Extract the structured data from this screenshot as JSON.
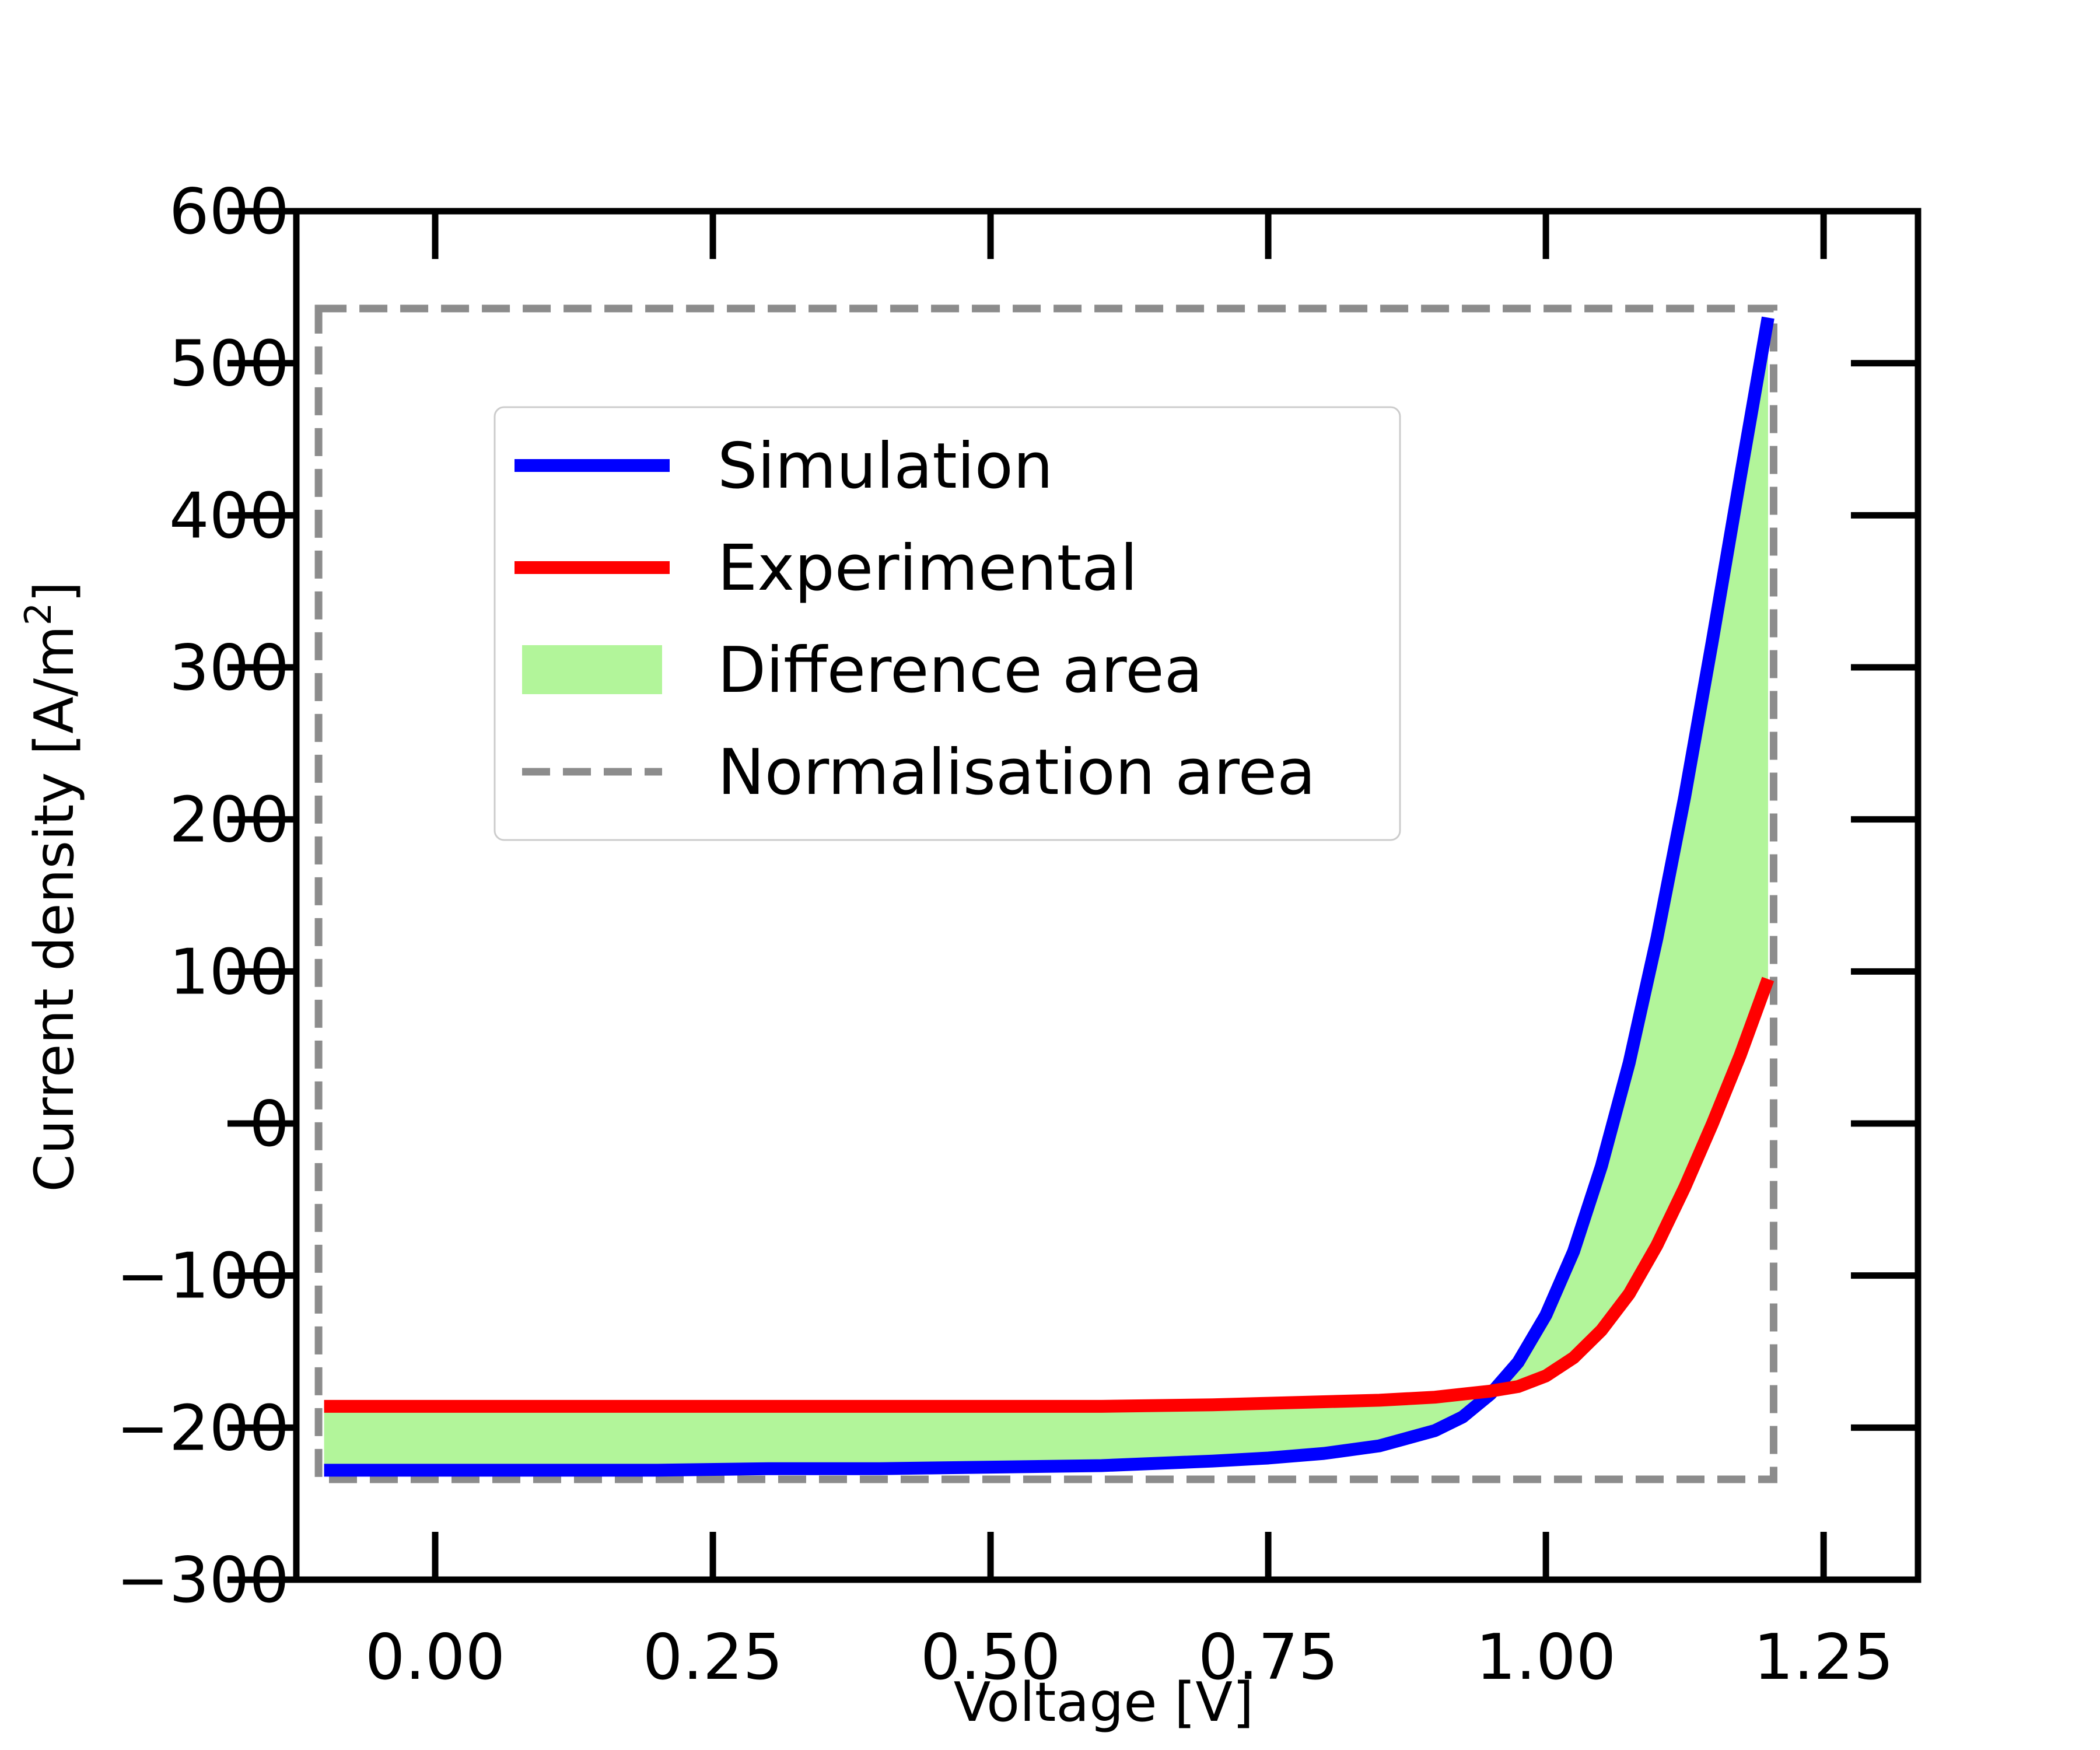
{
  "chart_data": {
    "type": "line",
    "xlabel": "Voltage [V]",
    "ylabel_main": "Current density [A/m",
    "ylabel_sup": "2",
    "ylabel_tail": "]",
    "xlim": [
      -0.125,
      1.335
    ],
    "ylim": [
      -300,
      600
    ],
    "xticks": [
      0.0,
      0.25,
      0.5,
      0.75,
      1.0,
      1.25
    ],
    "xtick_labels": [
      "0.00",
      "0.25",
      "0.50",
      "0.75",
      "1.00",
      "1.25"
    ],
    "yticks": [
      -300,
      -200,
      -100,
      0,
      100,
      200,
      300,
      400,
      500,
      600
    ],
    "ytick_labels": [
      "−300",
      "−200",
      "−100",
      "0",
      "100",
      "200",
      "300",
      "400",
      "500",
      "600"
    ],
    "grid": false,
    "legend_position": "upper-left",
    "colors": {
      "simulation": "#0000ff",
      "experimental": "#ff0000",
      "difference": "#b2f59a",
      "normalisation": "#8c8c8c"
    },
    "series": [
      {
        "name": "Simulation",
        "x": [
          -0.1,
          0.0,
          0.1,
          0.2,
          0.3,
          0.4,
          0.5,
          0.6,
          0.7,
          0.75,
          0.8,
          0.85,
          0.9,
          0.925,
          0.95,
          0.975,
          1.0,
          1.025,
          1.05,
          1.075,
          1.1,
          1.125,
          1.15,
          1.175,
          1.2
        ],
        "y": [
          -228,
          -228,
          -228,
          -228,
          -227,
          -227,
          -226,
          -225,
          -222,
          -220,
          -217,
          -212,
          -202,
          -193,
          -178,
          -157,
          -126,
          -84,
          -28,
          40,
          122,
          215,
          318,
          425,
          530
        ]
      },
      {
        "name": "Experimental",
        "x": [
          -0.1,
          0.0,
          0.1,
          0.2,
          0.3,
          0.4,
          0.5,
          0.6,
          0.7,
          0.75,
          0.8,
          0.85,
          0.9,
          0.925,
          0.95,
          0.975,
          1.0,
          1.025,
          1.05,
          1.075,
          1.1,
          1.125,
          1.15,
          1.175,
          1.2
        ],
        "y": [
          -186,
          -186,
          -186,
          -186,
          -186,
          -186,
          -186,
          -186,
          -185,
          -184,
          -183,
          -182,
          -180,
          -178,
          -176,
          -173,
          -166,
          -154,
          -136,
          -112,
          -80,
          -42,
          0,
          45,
          95
        ]
      }
    ],
    "fill_between": {
      "name": "Difference area",
      "between": [
        "Simulation",
        "Experimental"
      ]
    },
    "normalisation_area": {
      "name": "Normalisation area",
      "x": [
        -0.105,
        1.205
      ],
      "y": [
        -234,
        536
      ]
    },
    "legend": [
      {
        "label": "Simulation",
        "kind": "line",
        "color_key": "simulation"
      },
      {
        "label": "Experimental",
        "kind": "line",
        "color_key": "experimental"
      },
      {
        "label": "Difference area",
        "kind": "patch",
        "color_key": "difference"
      },
      {
        "label": "Normalisation area",
        "kind": "dashed",
        "color_key": "normalisation"
      }
    ]
  }
}
